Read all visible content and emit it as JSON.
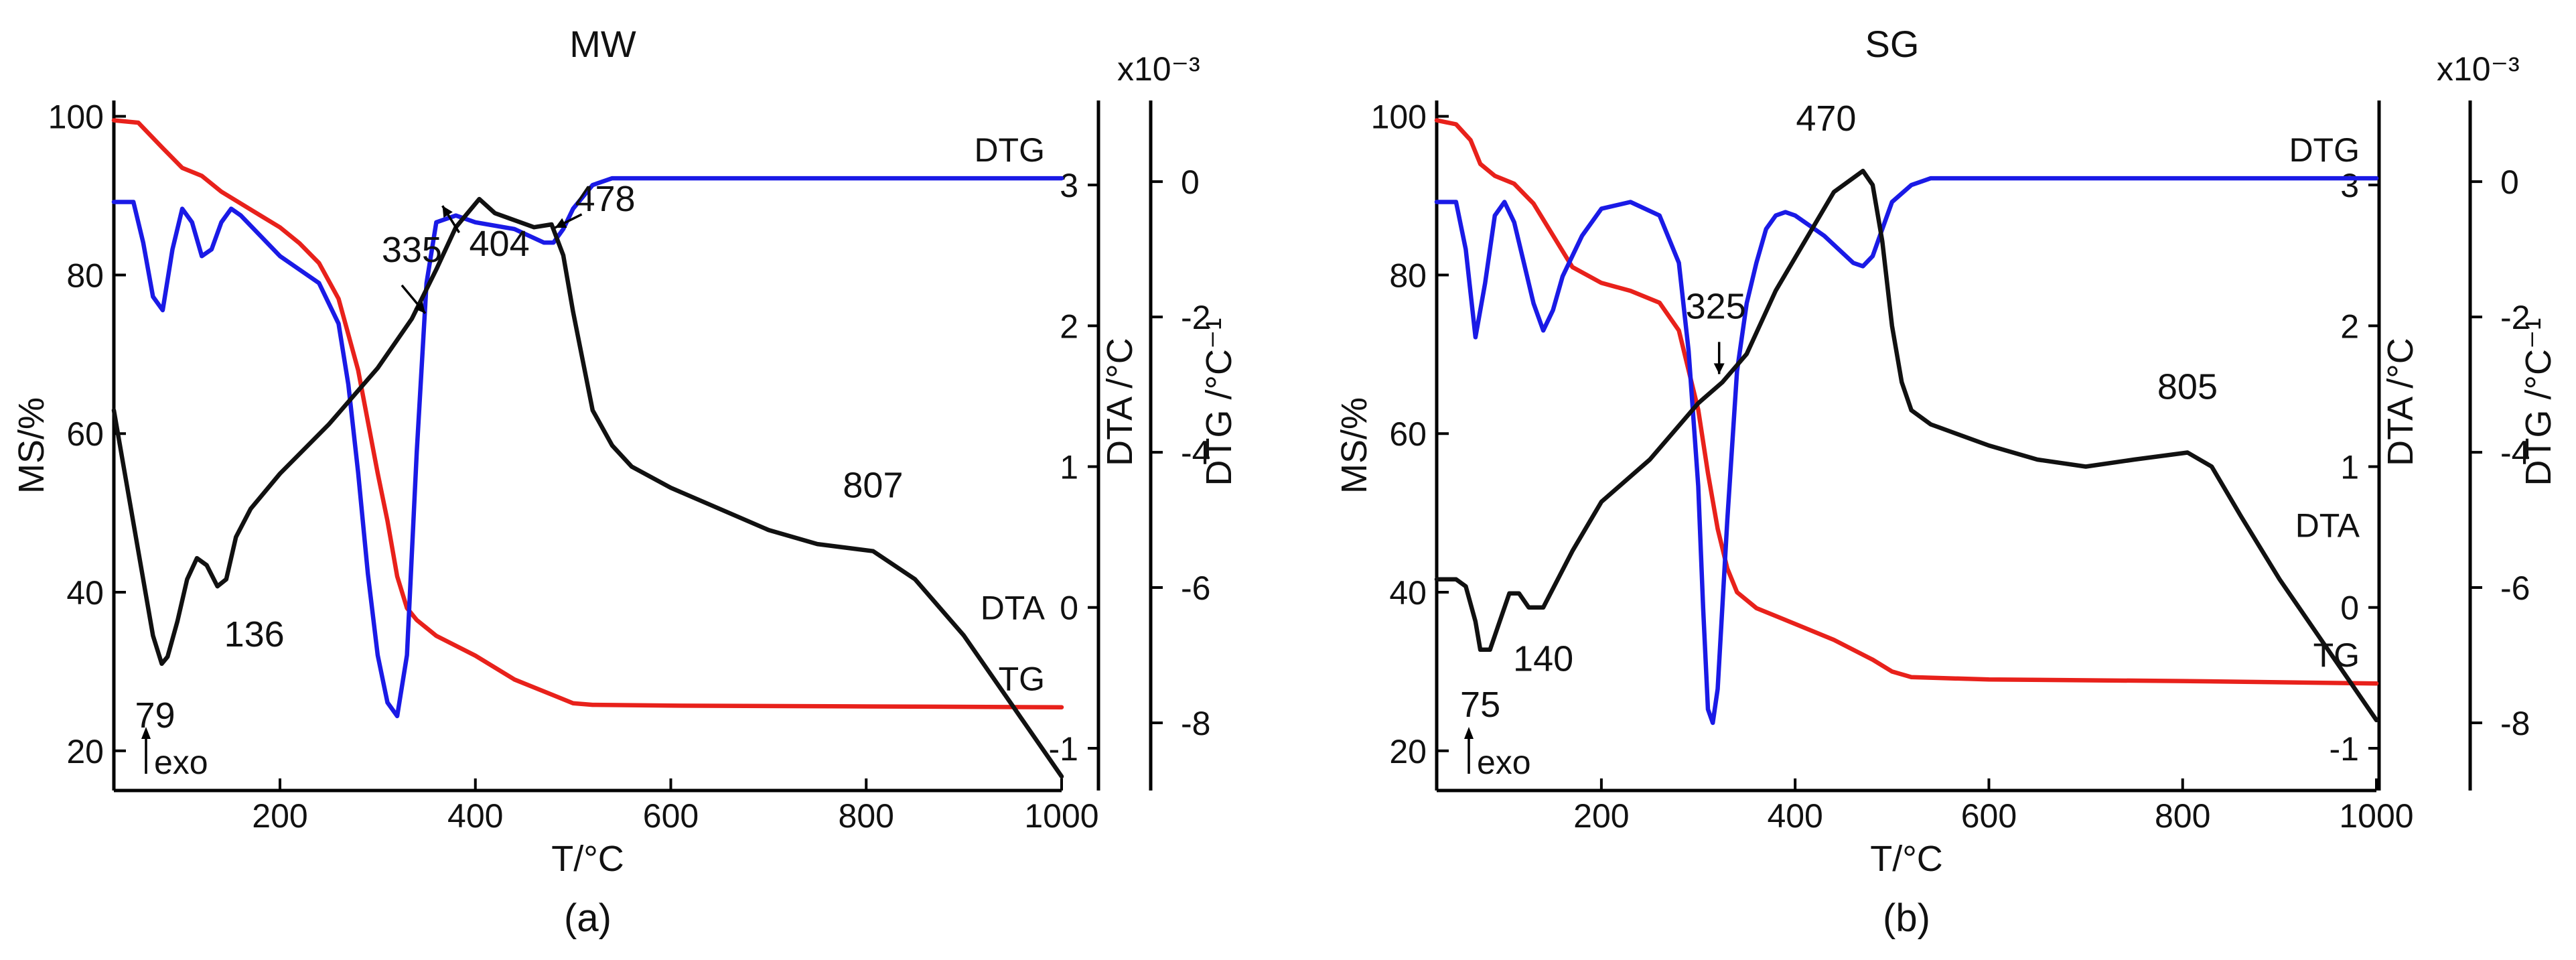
{
  "chart_data": [
    {
      "type": "line",
      "panel_label": "(a)",
      "title": "MW",
      "xlabel": "T/°C",
      "ylabel_left": "MS/%",
      "ylabel_right_inner": "DTA /°C",
      "ylabel_right_outer": "DTG /°C⁻¹",
      "dtg_scale": "x10⁻³",
      "xlim": [
        30,
        1000
      ],
      "ylim_ms": [
        15,
        102
      ],
      "ylim_dta": [
        -1.3,
        3.6
      ],
      "ylim_dtg": [
        -9,
        1.2
      ],
      "x_ticks": [
        200,
        400,
        600,
        800,
        1000
      ],
      "ms_ticks": [
        20,
        40,
        60,
        80,
        100
      ],
      "dta_ticks": [
        -1,
        0,
        1,
        2,
        3
      ],
      "dtg_ticks": [
        -8,
        -6,
        -4,
        -2,
        0
      ],
      "series": [
        {
          "name": "TG",
          "axis": "ms",
          "color": "#e8211b",
          "x": [
            30,
            55,
            80,
            100,
            120,
            140,
            160,
            180,
            200,
            220,
            240,
            260,
            280,
            300,
            310,
            320,
            330,
            340,
            360,
            400,
            440,
            480,
            500,
            520,
            600,
            800,
            1000
          ],
          "y": [
            99.5,
            99.2,
            96,
            93.5,
            92.5,
            90.5,
            89,
            87.5,
            86,
            84,
            81.5,
            77,
            68,
            55,
            49,
            42,
            38,
            36.5,
            34.5,
            32,
            29,
            27,
            26,
            25.8,
            25.7,
            25.6,
            25.5
          ]
        },
        {
          "name": "DTG",
          "axis": "dtg",
          "color": "#1a1ae6",
          "x": [
            30,
            50,
            60,
            70,
            80,
            90,
            100,
            110,
            120,
            130,
            140,
            150,
            160,
            180,
            200,
            220,
            240,
            260,
            270,
            280,
            290,
            300,
            310,
            320,
            330,
            340,
            350,
            360,
            380,
            400,
            440,
            470,
            480,
            490,
            500,
            520,
            540,
            600,
            800,
            1000
          ],
          "y": [
            -0.3,
            -0.3,
            -0.9,
            -1.7,
            -1.9,
            -1.0,
            -0.4,
            -0.6,
            -1.1,
            -1.0,
            -0.6,
            -0.4,
            -0.5,
            -0.8,
            -1.1,
            -1.3,
            -1.5,
            -2.1,
            -3.0,
            -4.3,
            -5.8,
            -7.0,
            -7.7,
            -7.9,
            -7.0,
            -4.0,
            -1.5,
            -0.6,
            -0.5,
            -0.6,
            -0.7,
            -0.9,
            -0.9,
            -0.7,
            -0.4,
            -0.05,
            0.05,
            0.05,
            0.05,
            0.05
          ]
        },
        {
          "name": "DTA",
          "axis": "dta",
          "color": "#111111",
          "x": [
            30,
            40,
            50,
            60,
            70,
            79,
            85,
            95,
            105,
            115,
            125,
            136,
            145,
            155,
            170,
            200,
            250,
            300,
            335,
            360,
            380,
            404,
            420,
            440,
            460,
            478,
            490,
            500,
            520,
            540,
            560,
            600,
            700,
            750,
            807,
            850,
            900,
            950,
            1000
          ],
          "y": [
            1.4,
            1.0,
            0.6,
            0.2,
            -0.2,
            -0.4,
            -0.35,
            -0.1,
            0.2,
            0.35,
            0.3,
            0.15,
            0.2,
            0.5,
            0.7,
            0.95,
            1.3,
            1.7,
            2.05,
            2.4,
            2.7,
            2.9,
            2.8,
            2.75,
            2.7,
            2.72,
            2.5,
            2.1,
            1.4,
            1.15,
            1.0,
            0.85,
            0.55,
            0.45,
            0.4,
            0.2,
            -0.2,
            -0.7,
            -1.2
          ]
        }
      ],
      "annotations": [
        {
          "text": "79",
          "x": 79,
          "y": -0.4,
          "axis": "dta"
        },
        {
          "text": "136",
          "x": 136,
          "y": 0.15,
          "axis": "dta"
        },
        {
          "text": "335",
          "x": 335,
          "y": 2.05,
          "axis": "dta"
        },
        {
          "text": "404",
          "x": 404,
          "y": 2.9,
          "axis": "dta"
        },
        {
          "text": "478",
          "x": 478,
          "y": 2.72,
          "axis": "dta"
        },
        {
          "text": "807",
          "x": 807,
          "y": 0.4,
          "axis": "dta"
        }
      ],
      "note": "exo"
    },
    {
      "type": "line",
      "panel_label": "(b)",
      "title": "SG",
      "xlabel": "T/°C",
      "ylabel_left": "MS/%",
      "ylabel_right_inner": "DTA /°C",
      "ylabel_right_outer": "DTG /°C⁻¹",
      "dtg_scale": "x10⁻³",
      "xlim": [
        30,
        1000
      ],
      "ylim_ms": [
        15,
        102
      ],
      "ylim_dta": [
        -1.3,
        3.6
      ],
      "ylim_dtg": [
        -9,
        1.2
      ],
      "x_ticks": [
        200,
        400,
        600,
        800,
        1000
      ],
      "ms_ticks": [
        20,
        40,
        60,
        80,
        100
      ],
      "dta_ticks": [
        -1,
        0,
        1,
        2,
        3
      ],
      "dtg_ticks": [
        -8,
        -6,
        -4,
        -2,
        0
      ],
      "series": [
        {
          "name": "TG",
          "axis": "ms",
          "color": "#e8211b",
          "x": [
            30,
            50,
            65,
            75,
            90,
            110,
            130,
            150,
            170,
            200,
            230,
            260,
            280,
            300,
            310,
            320,
            330,
            340,
            360,
            380,
            400,
            440,
            480,
            500,
            520,
            600,
            800,
            1000
          ],
          "y": [
            99.5,
            99.0,
            97,
            94,
            92.5,
            91.5,
            89,
            85,
            81,
            79,
            78,
            76.5,
            73,
            63,
            55,
            48,
            43,
            40,
            38,
            37,
            36,
            34,
            31.5,
            30,
            29.3,
            29,
            28.8,
            28.5
          ]
        },
        {
          "name": "DTG",
          "axis": "dtg",
          "color": "#1a1ae6",
          "x": [
            30,
            50,
            60,
            70,
            80,
            90,
            100,
            110,
            120,
            130,
            140,
            150,
            160,
            180,
            200,
            230,
            260,
            280,
            290,
            300,
            305,
            310,
            315,
            320,
            330,
            340,
            350,
            360,
            370,
            380,
            390,
            400,
            430,
            460,
            470,
            480,
            490,
            500,
            520,
            540,
            600,
            800,
            1000
          ],
          "y": [
            -0.3,
            -0.3,
            -1.0,
            -2.3,
            -1.5,
            -0.5,
            -0.3,
            -0.6,
            -1.2,
            -1.8,
            -2.2,
            -1.9,
            -1.4,
            -0.8,
            -0.4,
            -0.3,
            -0.5,
            -1.2,
            -2.5,
            -4.5,
            -6.3,
            -7.8,
            -8.0,
            -7.5,
            -5.0,
            -2.8,
            -1.8,
            -1.2,
            -0.7,
            -0.5,
            -0.45,
            -0.5,
            -0.8,
            -1.2,
            -1.25,
            -1.1,
            -0.7,
            -0.3,
            -0.05,
            0.05,
            0.05,
            0.05,
            0.05
          ]
        },
        {
          "name": "DTA",
          "axis": "dta",
          "color": "#111111",
          "x": [
            30,
            50,
            60,
            70,
            75,
            85,
            95,
            105,
            115,
            125,
            140,
            155,
            170,
            200,
            250,
            300,
            325,
            350,
            380,
            410,
            440,
            470,
            480,
            490,
            500,
            510,
            520,
            540,
            560,
            600,
            650,
            700,
            750,
            805,
            830,
            860,
            900,
            950,
            1000
          ],
          "y": [
            0.2,
            0.2,
            0.15,
            -0.1,
            -0.3,
            -0.3,
            -0.1,
            0.1,
            0.1,
            0.0,
            0.0,
            0.2,
            0.4,
            0.75,
            1.05,
            1.45,
            1.6,
            1.8,
            2.25,
            2.6,
            2.95,
            3.1,
            3.0,
            2.6,
            2.0,
            1.6,
            1.4,
            1.3,
            1.25,
            1.15,
            1.05,
            1.0,
            1.05,
            1.1,
            1.0,
            0.65,
            0.2,
            -0.3,
            -0.8
          ]
        }
      ],
      "annotations": [
        {
          "text": "75",
          "x": 75,
          "y": -0.3,
          "axis": "dta"
        },
        {
          "text": "140",
          "x": 140,
          "y": 0.0,
          "axis": "dta"
        },
        {
          "text": "325",
          "x": 325,
          "y": 1.6,
          "axis": "dta"
        },
        {
          "text": "470",
          "x": 470,
          "y": 3.1,
          "axis": "dta"
        },
        {
          "text": "805",
          "x": 805,
          "y": 1.1,
          "axis": "dta"
        }
      ],
      "note": "exo"
    }
  ]
}
